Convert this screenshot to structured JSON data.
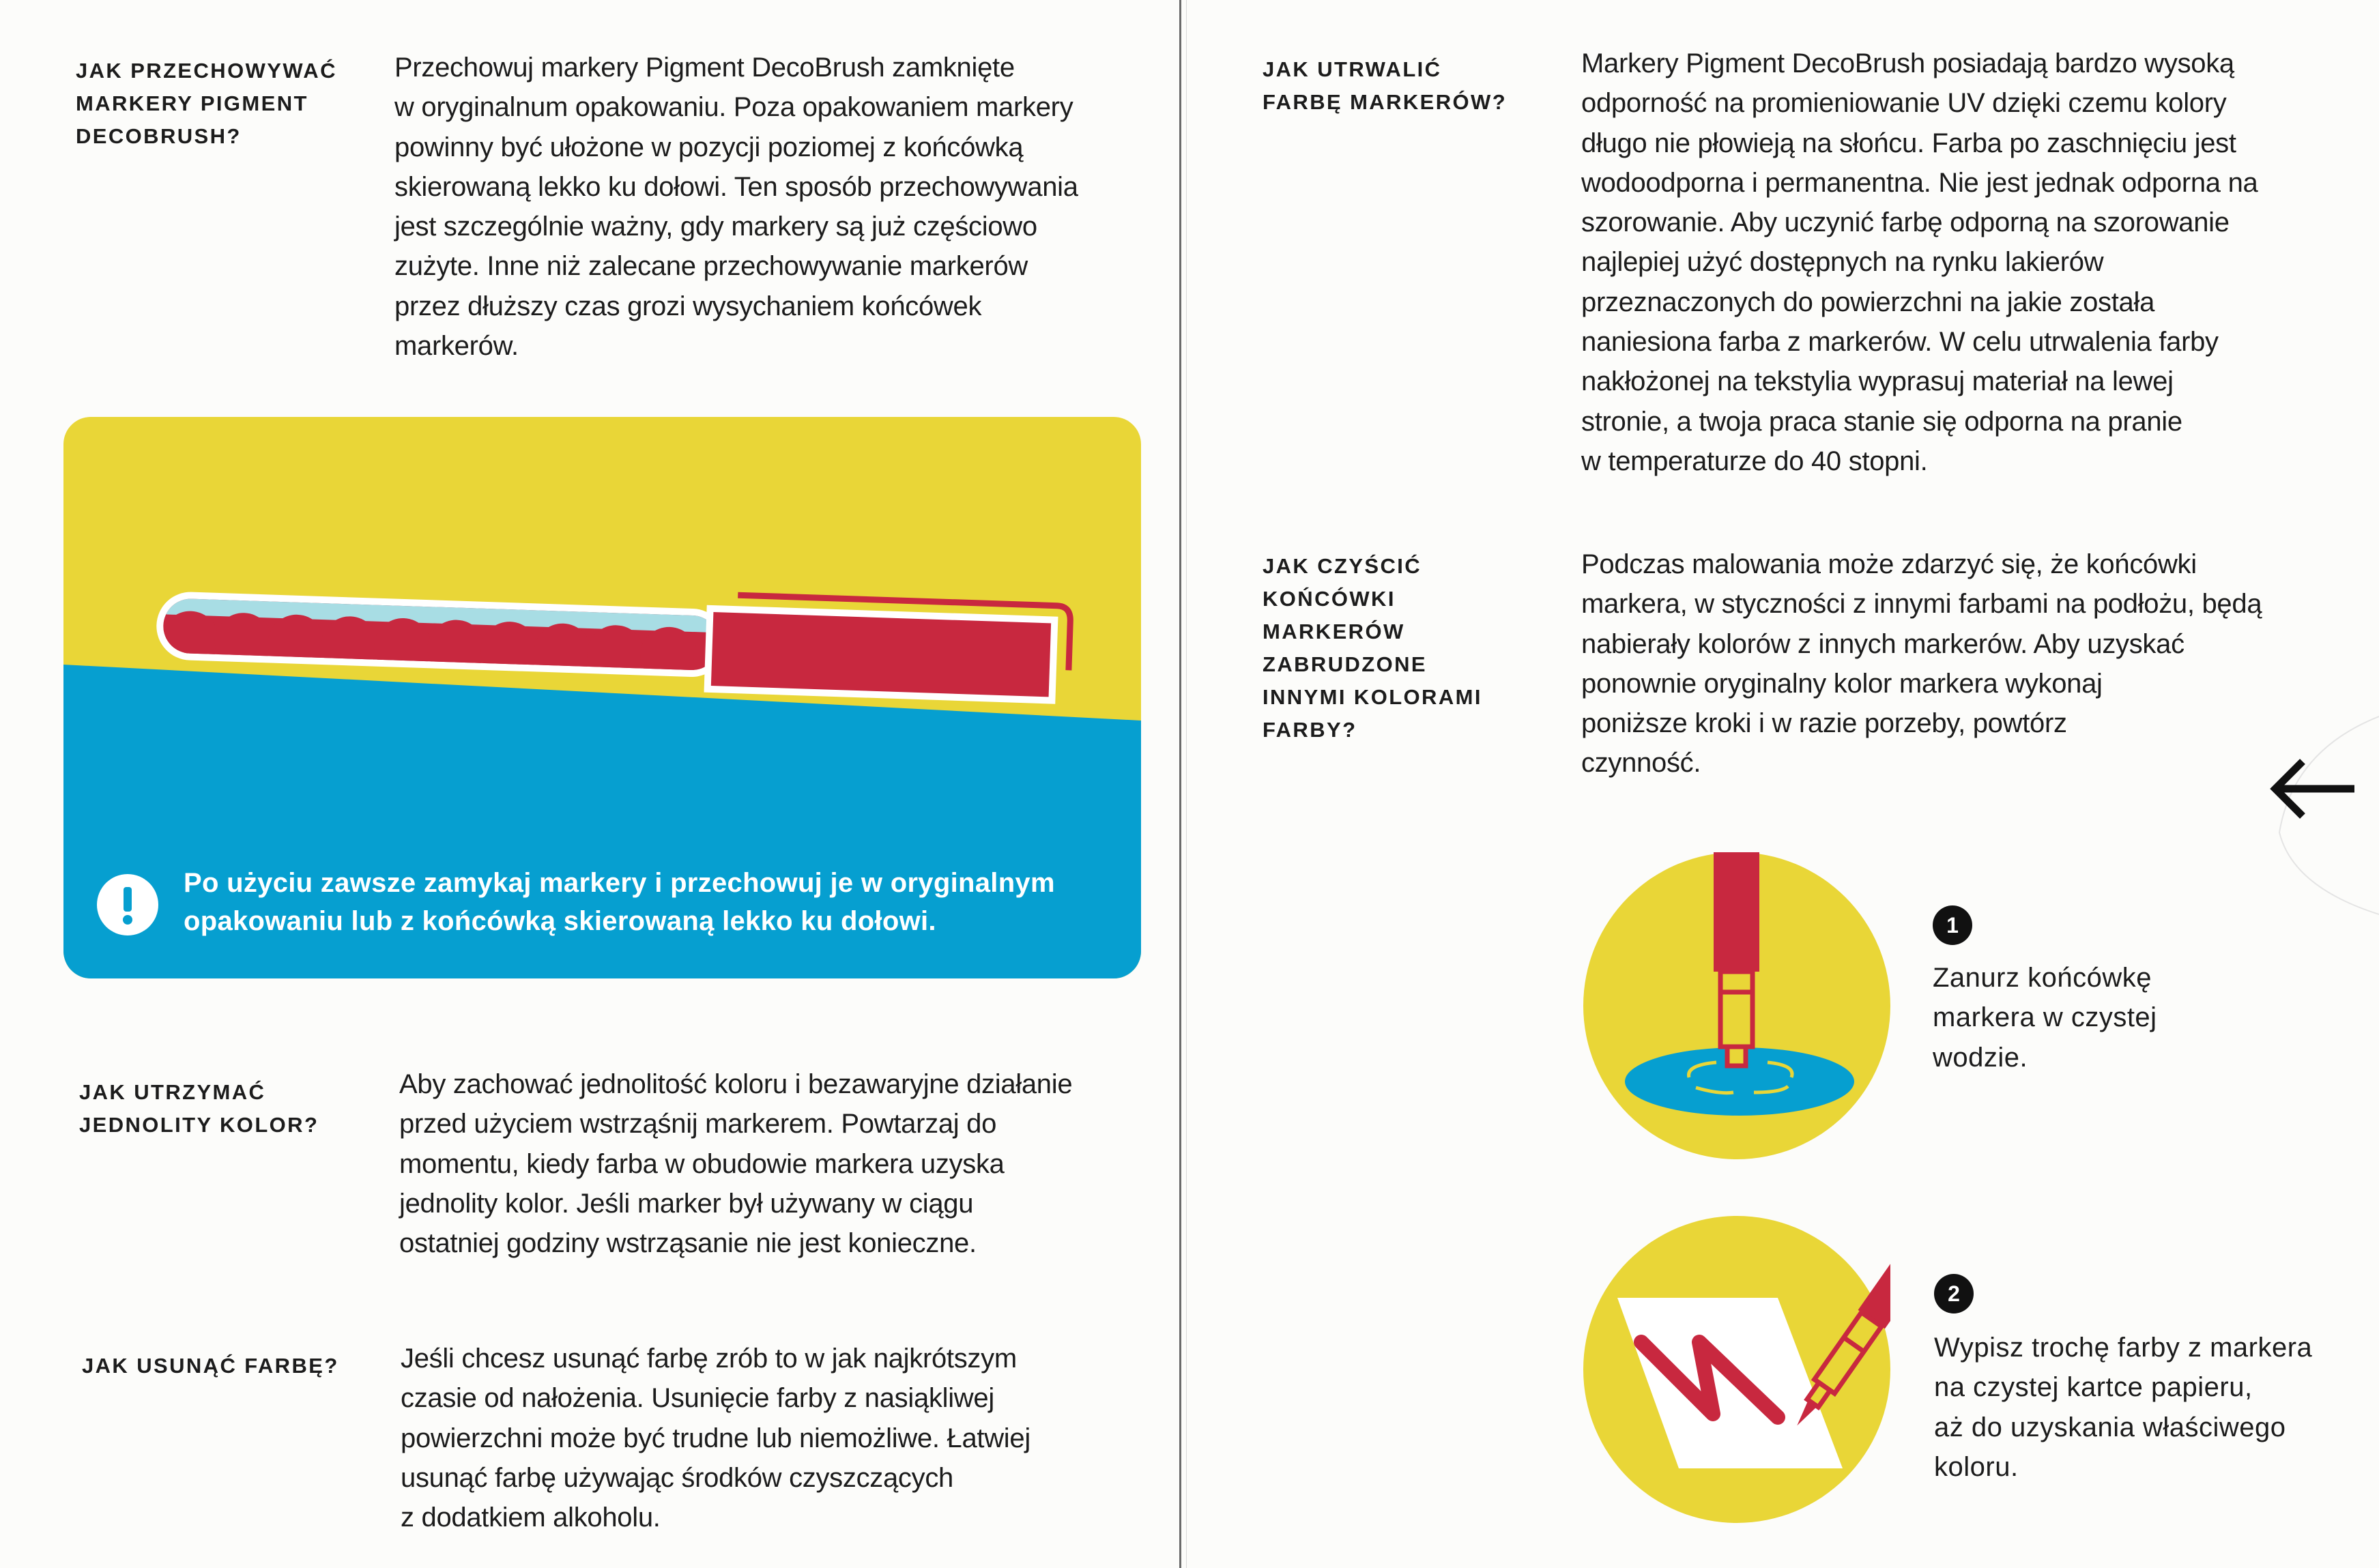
{
  "colors": {
    "yellow": "#e9d637",
    "blue": "#069fd0",
    "crimson": "#c8283f",
    "light_blue": "#a8dde4",
    "text": "#1c1c1c"
  },
  "left_page": {
    "section1": {
      "heading": "JAK PRZECHOWYWAĆ\nMARKERY PIGMENT\nDECOBRUSH?",
      "body": "Przechowuj markery Pigment DecoBrush zamknięte\nw oryginalnum opakowaniu. Poza opakowaniem markery\npowinny być ułożone w pozycji poziomej z końcówką\nskierowaną lekko ku dołowi. Ten sposób przechowywania\njest szczególnie ważny, gdy markery są już częściowo\nzużyte. Inne niż zalecane przechowywanie markerów\nprzez dłuższy czas grozi wysychaniem końcówek\nmarkerów."
    },
    "card": {
      "icon": "exclamation-icon",
      "note": "Po użyciu zawsze zamykaj markery i przechowuj je w oryginalnym\nopakowaniu lub z końcówką skierowaną lekko ku dołowi."
    },
    "section2": {
      "heading": "JAK UTRZYMAĆ\nJEDNOLITY KOLOR?",
      "body": "Aby zachować jednolitość koloru i bezawaryjne działanie\nprzed użyciem wstrząśnij markerem. Powtarzaj do\nmomentu, kiedy farba w obudowie markera uzyska\njednolity kolor. Jeśli marker był używany w ciągu\nostatniej godziny wstrząsanie nie jest konieczne."
    },
    "section3": {
      "heading": "JAK USUNĄĆ FARBĘ?",
      "body": "Jeśli chcesz usunąć farbę zrób to w jak najkrótszym\nczasie od nałożenia. Usunięcie farby z nasiąkliwej\npowierzchni może być trudne lub niemożliwe. Łatwiej\nusunąć farbę używając środków czyszczących\nz dodatkiem alkoholu."
    }
  },
  "right_page": {
    "section1": {
      "heading": "JAK UTRWALIĆ\nFARBĘ MARKERÓW?",
      "body": "Markery Pigment DecoBrush posiadają bardzo wysoką\nodporność na promieniowanie UV dzięki czemu kolory\ndługo nie płowieją na słońcu. Farba po zaschnięciu jest\nwodoodporna i permanentna. Nie jest jednak odporna na\nszorowanie. Aby uczynić farbę odporną na szorowanie\nnajlepiej użyć dostępnych na rynku lakierów\nprzeznaczonych do powierzchni na jakie została\nnaniesiona farba z markerów. W celu utrwalenia farby\nnakłożonej na tekstylia wyprasuj materiał na lewej\nstronie, a twoja praca stanie się odporna na pranie\nw temperaturze do 40 stopni."
    },
    "section2": {
      "heading": "JAK CZYŚCIĆ\nKOŃCÓWKI\nMARKERÓW\nZABRUDZONE\nINNYMI KOLORAMI\nFARBY?",
      "body": "Podczas malowania może zdarzyć się, że końcówki\nmarkera, w styczności z innymi farbami na podłożu, będą\nnabierały kolorów z innych markerów. Aby uzyskać\nponownie oryginalny kolor markera wykonaj\nponiższe kroki i w razie porzeby, powtórz\nczynność."
    },
    "arrow_icon": "arrow-left-icon",
    "steps": [
      {
        "number": "1",
        "text": "Zanurz końcówkę\nmarkera w czystej\nwodzie."
      },
      {
        "number": "2",
        "text": "Wypisz trochę farby z markera\nna czystej kartce papieru,\naż do uzyskania właściwego\nkoloru."
      }
    ]
  }
}
